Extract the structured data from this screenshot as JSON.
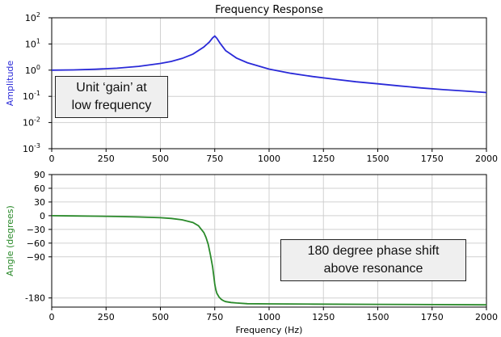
{
  "colors": {
    "amplitude": "#2a2ad8",
    "angle": "#2a8a2a",
    "grid": "#d0d0d0",
    "axis": "#000000",
    "callout_bg": "#efefef"
  },
  "chart_data": [
    {
      "type": "line",
      "title": "Frequency Response",
      "ylabel": "Amplitude",
      "xlabel": "",
      "yscale": "log",
      "xlim": [
        0,
        2000
      ],
      "ylim": [
        0.001,
        100
      ],
      "xticks": [
        "0",
        "250",
        "500",
        "750",
        "1000",
        "1250",
        "1500",
        "1750",
        "2000"
      ],
      "xtick_values": [
        0,
        250,
        500,
        750,
        1000,
        1250,
        1500,
        1750,
        2000
      ],
      "ytick_exponents": [
        "-3",
        "-2",
        "-1",
        "0",
        "1",
        "2"
      ],
      "ytick_values": [
        0.001,
        0.01,
        0.1,
        1,
        10,
        100
      ],
      "grid": true,
      "series": [
        {
          "name": "Amplitude",
          "x": [
            0,
            100,
            200,
            300,
            400,
            500,
            550,
            600,
            650,
            700,
            725,
            740,
            750,
            760,
            775,
            800,
            850,
            900,
            1000,
            1100,
            1200,
            1300,
            1400,
            1500,
            1600,
            1700,
            1800,
            1900,
            2000
          ],
          "y": [
            1.0,
            1.02,
            1.08,
            1.19,
            1.4,
            1.8,
            2.16,
            2.8,
            4.1,
            7.7,
            11.8,
            17.0,
            20.0,
            16.5,
            10.5,
            5.6,
            2.9,
            1.92,
            1.1,
            0.76,
            0.57,
            0.45,
            0.36,
            0.3,
            0.25,
            0.21,
            0.18,
            0.16,
            0.14
          ]
        }
      ],
      "annotation": {
        "line1": "Unit ‘gain’ at",
        "line2": "low frequency"
      }
    },
    {
      "type": "line",
      "title": "",
      "ylabel": "Angle (degrees)",
      "xlabel": "Frequency (Hz)",
      "xlim": [
        0,
        2000
      ],
      "ylim": [
        -200,
        90
      ],
      "xticks": [
        "0",
        "250",
        "500",
        "750",
        "1000",
        "1250",
        "1500",
        "1750",
        "2000"
      ],
      "xtick_values": [
        0,
        250,
        500,
        750,
        1000,
        1250,
        1500,
        1750,
        2000
      ],
      "yticks": [
        "90",
        "60",
        "30",
        "0",
        "−30",
        "−60",
        "−90",
        "-180"
      ],
      "ytick_values": [
        90,
        60,
        30,
        0,
        -30,
        -60,
        -90,
        -180
      ],
      "grid": true,
      "series": [
        {
          "name": "Angle",
          "x": [
            0,
            100,
            200,
            300,
            400,
            500,
            550,
            600,
            650,
            675,
            700,
            710,
            720,
            730,
            740,
            745,
            750,
            755,
            760,
            770,
            780,
            790,
            800,
            825,
            850,
            900,
            1000,
            1200,
            1500,
            2000
          ],
          "y": [
            0,
            -0.5,
            -1,
            -1.8,
            -2.8,
            -4.5,
            -6,
            -9,
            -15,
            -22,
            -37,
            -48,
            -63,
            -86,
            -112,
            -130,
            -150,
            -162,
            -170,
            -178,
            -183,
            -186,
            -188,
            -190,
            -191,
            -192.5,
            -193,
            -193.5,
            -194,
            -195
          ]
        }
      ],
      "annotation": {
        "line1": "180 degree phase shift",
        "line2": "above resonance"
      }
    }
  ]
}
